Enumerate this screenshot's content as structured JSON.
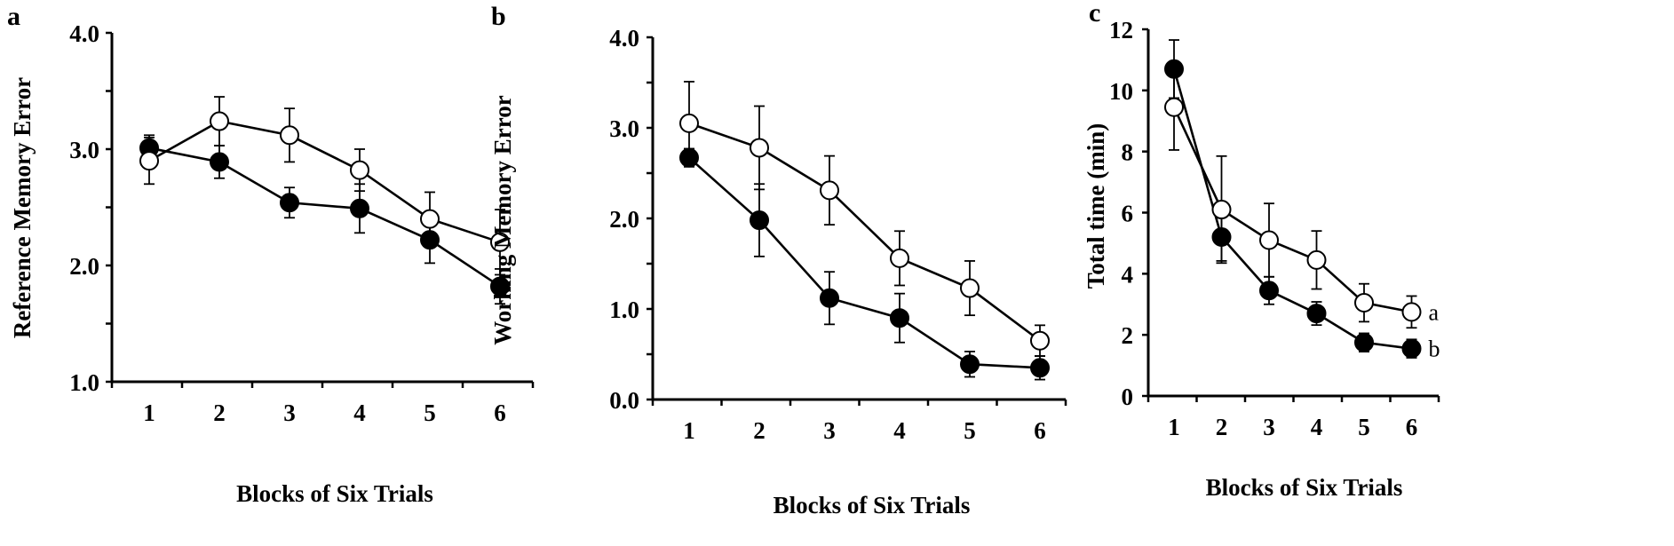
{
  "figure": {
    "series_styles": {
      "filled": {
        "fill": "#000000",
        "stroke": "#000000"
      },
      "open": {
        "fill": "#ffffff",
        "stroke": "#000000"
      }
    }
  },
  "chart_data": [
    {
      "panel": "a",
      "type": "line",
      "title": "",
      "xlabel": "Blocks of Six Trials",
      "ylabel": "Reference Memory Error",
      "x": [
        1,
        2,
        3,
        4,
        5,
        6
      ],
      "x_tick_labels": [
        "1",
        "2",
        "3",
        "4",
        "5",
        "6"
      ],
      "ylim": [
        1.0,
        4.0
      ],
      "y_ticks": [
        1.0,
        1.5,
        2.0,
        2.5,
        3.0,
        3.5,
        4.0
      ],
      "y_tick_labels": [
        "1.0",
        "",
        "2.0",
        "",
        "3.0",
        "",
        "4.0"
      ],
      "grid": false,
      "series": [
        {
          "name": "filled",
          "marker": "filled-circle",
          "values": [
            3.01,
            2.89,
            2.54,
            2.49,
            2.22,
            1.82
          ],
          "error": [
            0.11,
            0.14,
            0.13,
            0.21,
            0.2,
            0.15
          ]
        },
        {
          "name": "open",
          "marker": "open-circle",
          "values": [
            2.9,
            3.24,
            3.12,
            2.82,
            2.4,
            2.2
          ],
          "error": [
            0.2,
            0.21,
            0.23,
            0.18,
            0.23,
            0.28
          ]
        }
      ]
    },
    {
      "panel": "b",
      "type": "line",
      "title": "",
      "xlabel": "Blocks of Six Trials",
      "ylabel": "Working Memory Error",
      "x": [
        1,
        2,
        3,
        4,
        5,
        6
      ],
      "x_tick_labels": [
        "1",
        "2",
        "3",
        "4",
        "5",
        "6"
      ],
      "ylim": [
        0.0,
        4.0
      ],
      "y_ticks": [
        0.0,
        0.5,
        1.0,
        1.5,
        2.0,
        2.5,
        3.0,
        3.5,
        4.0
      ],
      "y_tick_labels": [
        "0.0",
        "",
        "1.0",
        "",
        "2.0",
        "",
        "3.0",
        "",
        "4.0"
      ],
      "grid": false,
      "series": [
        {
          "name": "filled",
          "marker": "filled-circle",
          "values": [
            2.67,
            1.98,
            1.12,
            0.9,
            0.39,
            0.35
          ],
          "error": [
            0.1,
            0.4,
            0.29,
            0.27,
            0.14,
            0.13
          ]
        },
        {
          "name": "open",
          "marker": "open-circle",
          "values": [
            3.05,
            2.78,
            2.31,
            1.56,
            1.23,
            0.65
          ],
          "error": [
            0.46,
            0.46,
            0.38,
            0.3,
            0.3,
            0.17
          ]
        }
      ]
    },
    {
      "panel": "c",
      "type": "line",
      "title": "",
      "xlabel": "Blocks of Six Trials",
      "ylabel": "Total time (min)",
      "x": [
        1,
        2,
        3,
        4,
        5,
        6
      ],
      "x_tick_labels": [
        "1",
        "2",
        "3",
        "4",
        "5",
        "6"
      ],
      "ylim": [
        0,
        12
      ],
      "y_ticks": [
        0,
        2,
        4,
        6,
        8,
        10,
        12
      ],
      "y_tick_labels": [
        "0",
        "2",
        "4",
        "6",
        "8",
        "10",
        "12"
      ],
      "grid": false,
      "series": [
        {
          "name": "filled",
          "marker": "filled-circle",
          "values": [
            10.7,
            5.2,
            3.45,
            2.7,
            1.75,
            1.55
          ],
          "error": [
            0.95,
            0.78,
            0.45,
            0.38,
            0.3,
            0.3
          ],
          "end_label": "b"
        },
        {
          "name": "open",
          "marker": "open-circle",
          "values": [
            9.45,
            6.1,
            5.1,
            4.45,
            3.05,
            2.75
          ],
          "error": [
            1.4,
            1.75,
            1.2,
            0.95,
            0.62,
            0.52
          ],
          "end_label": "a"
        }
      ]
    }
  ]
}
